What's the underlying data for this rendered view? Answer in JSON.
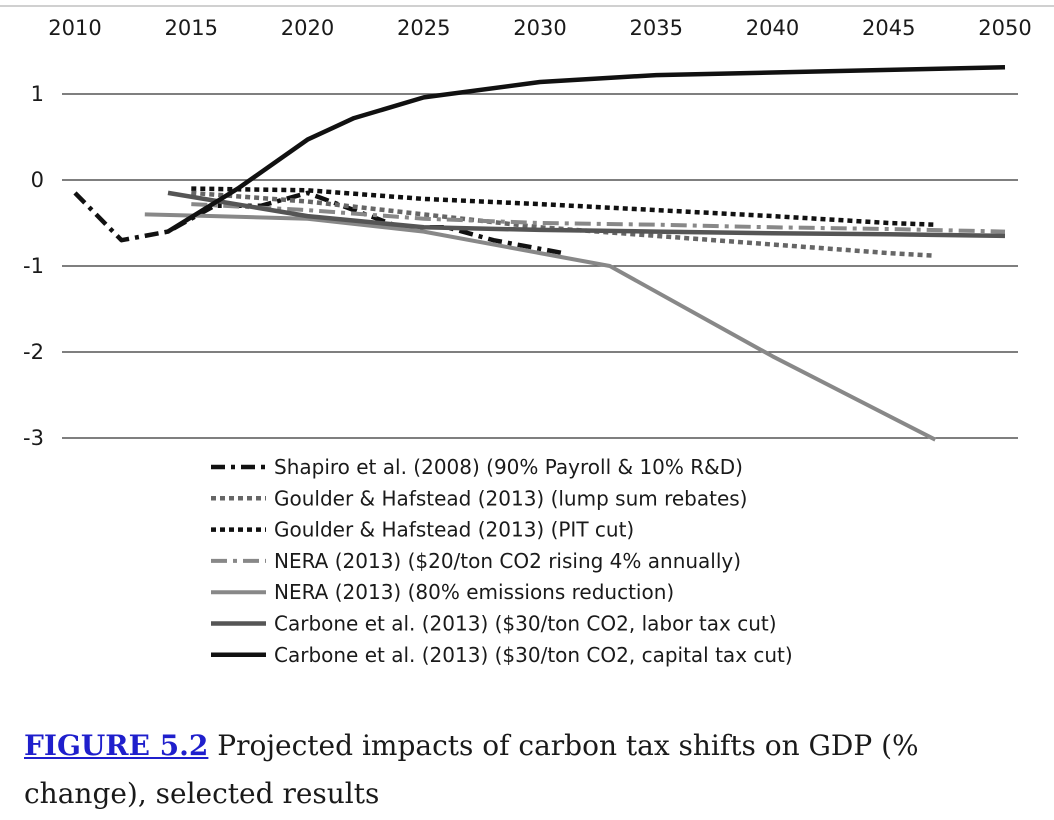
{
  "chart_data": {
    "type": "line",
    "title": "",
    "xlabel": "",
    "ylabel": "",
    "xlim": [
      2010,
      2050
    ],
    "ylim": [
      -3,
      1.2
    ],
    "x_ticks": [
      "2010",
      "2015",
      "2020",
      "2025",
      "2030",
      "2035",
      "2040",
      "2045",
      "2050"
    ],
    "y_ticks": [
      "1",
      "0",
      "-1",
      "-2",
      "-3"
    ],
    "grid": true,
    "legend_position": "bottom-center",
    "series": [
      {
        "name": "Shapiro et al. (2008) (90% Payroll & 10% R&D)",
        "color": "#111111",
        "style": "dashdot",
        "x": [
          2010,
          2012,
          2014,
          2016,
          2018,
          2020,
          2022,
          2024,
          2026,
          2028,
          2030,
          2031
        ],
        "y": [
          -0.15,
          -0.7,
          -0.6,
          -0.3,
          -0.3,
          -0.15,
          -0.35,
          -0.55,
          -0.55,
          -0.7,
          -0.8,
          -0.85
        ]
      },
      {
        "name": "Goulder & Hafstead (2013) (lump sum rebates)",
        "color": "#666666",
        "style": "dotted",
        "x": [
          2015,
          2020,
          2025,
          2030,
          2035,
          2040,
          2045,
          2047
        ],
        "y": [
          -0.15,
          -0.25,
          -0.4,
          -0.55,
          -0.65,
          -0.75,
          -0.85,
          -0.88
        ]
      },
      {
        "name": "Goulder & Hafstead (2013) (PIT cut)",
        "color": "#111111",
        "style": "dotted",
        "x": [
          2015,
          2020,
          2025,
          2030,
          2035,
          2040,
          2045,
          2047
        ],
        "y": [
          -0.1,
          -0.12,
          -0.22,
          -0.28,
          -0.35,
          -0.42,
          -0.5,
          -0.52
        ]
      },
      {
        "name": "NERA (2013) ($20/ton CO2 rising 4% annually)",
        "color": "#888888",
        "style": "dashdot",
        "x": [
          2015,
          2020,
          2025,
          2030,
          2035,
          2040,
          2045,
          2050
        ],
        "y": [
          -0.28,
          -0.35,
          -0.45,
          -0.5,
          -0.52,
          -0.55,
          -0.57,
          -0.6
        ]
      },
      {
        "name": "NERA (2013) (80% emissions reduction)",
        "color": "#888888",
        "style": "solid",
        "x": [
          2013,
          2016,
          2020,
          2025,
          2030,
          2033,
          2040,
          2047
        ],
        "y": [
          -0.4,
          -0.42,
          -0.45,
          -0.6,
          -0.85,
          -1.0,
          -2.05,
          -3.02
        ]
      },
      {
        "name": "Carbone et al. (2013) ($30/ton CO2, labor tax cut)",
        "color": "#555555",
        "style": "solid",
        "x": [
          2014,
          2020,
          2025,
          2030,
          2035,
          2040,
          2045,
          2050
        ],
        "y": [
          -0.15,
          -0.42,
          -0.55,
          -0.58,
          -0.6,
          -0.62,
          -0.63,
          -0.65
        ]
      },
      {
        "name": "Carbone et al. (2013) ($30/ton CO2, capital tax cut)",
        "color": "#111111",
        "style": "solid",
        "x": [
          2014,
          2017,
          2020,
          2022,
          2025,
          2030,
          2035,
          2040,
          2045,
          2050
        ],
        "y": [
          -0.6,
          -0.1,
          0.47,
          0.72,
          0.96,
          1.14,
          1.22,
          1.25,
          1.28,
          1.31
        ]
      }
    ]
  },
  "caption": {
    "figure_label": "FIGURE 5.2",
    "text": " Projected impacts of carbon tax shifts on GDP (% change), selected results"
  }
}
